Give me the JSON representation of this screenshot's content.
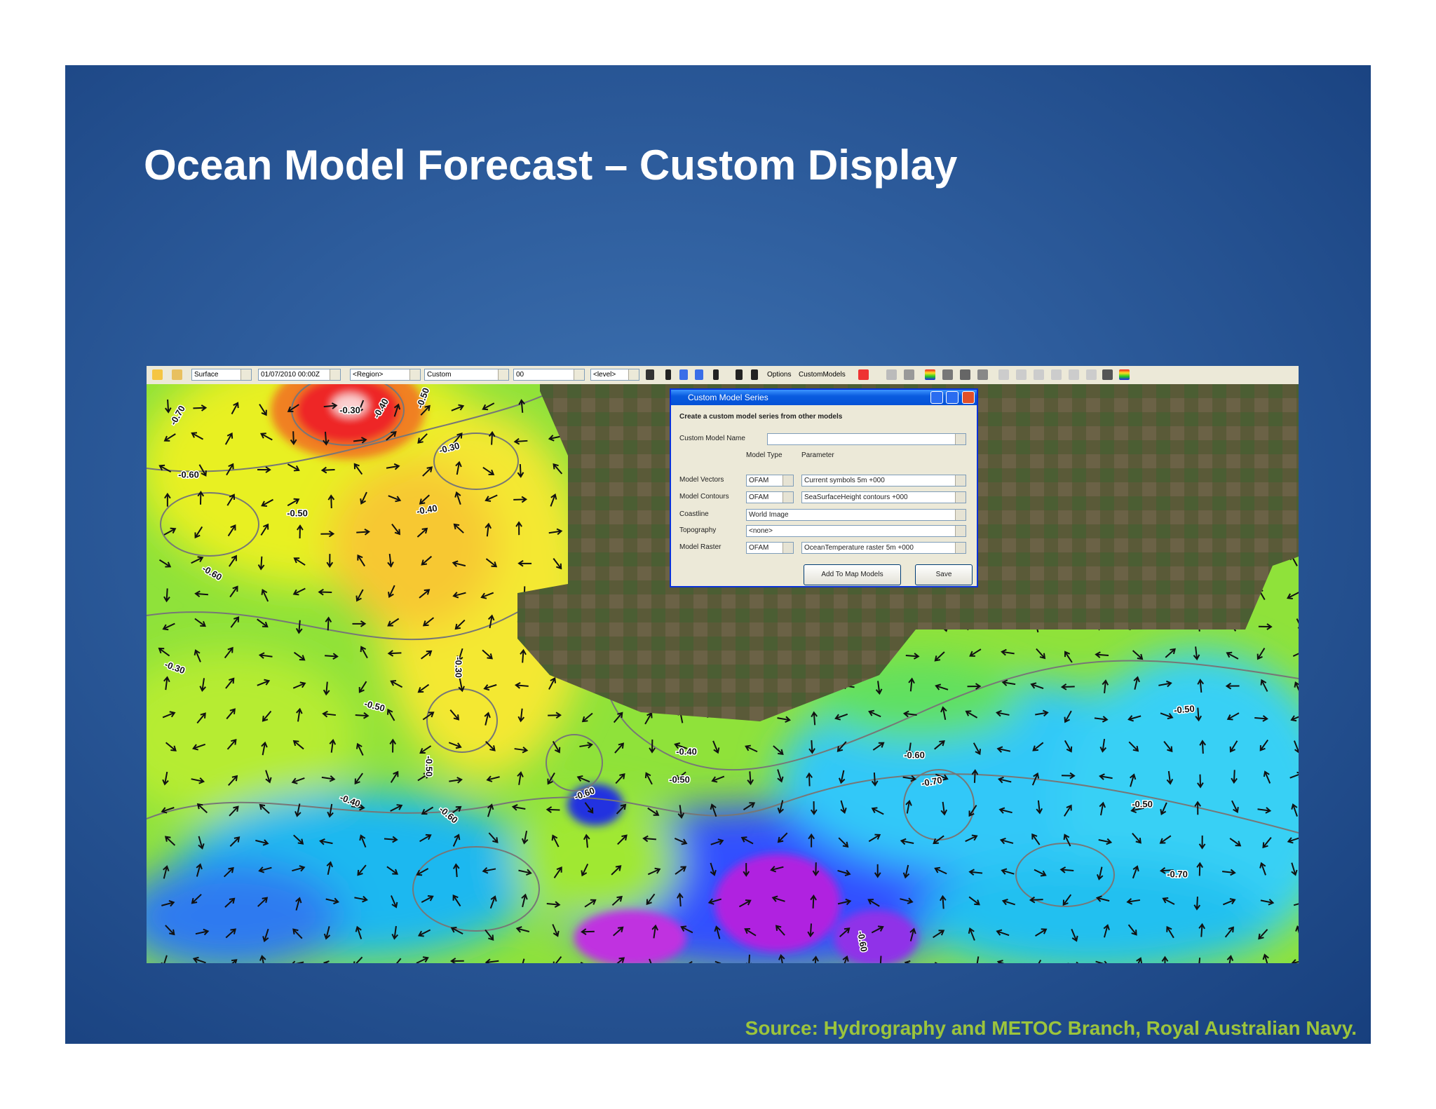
{
  "slide": {
    "title": "Ocean Model Forecast – Custom Display",
    "source": "Source: Hydrography and METOC Branch, Royal Australian Navy."
  },
  "toolbar": {
    "fields": [
      "Surface",
      "01/07/2010 00:00Z",
      "<Region>",
      "Custom",
      "00",
      "<level>"
    ],
    "buttons": [
      "Options",
      "CustomModels"
    ]
  },
  "dialog": {
    "title": "Custom Model Series",
    "heading": "Create a custom model series from other models",
    "name_label": "Custom Model Name",
    "column_headers": [
      "Model Type",
      "Parameter"
    ],
    "rows": [
      {
        "label": "Model Vectors",
        "type": "OFAM",
        "parameter": "Current symbols 5m +000"
      },
      {
        "label": "Model Contours",
        "type": "OFAM",
        "parameter": "SeaSurfaceHeight contours +000"
      },
      {
        "label": "Coastline",
        "parameter": "World Image"
      },
      {
        "label": "Topography",
        "parameter": "<none>"
      },
      {
        "label": "Model Raster",
        "type": "OFAM",
        "parameter": "OceanTemperature raster 5m +000"
      }
    ],
    "buttons": [
      "Add To Map Models",
      "Save"
    ]
  },
  "map": {
    "contour_labels": [
      "-0.30",
      "-0.40",
      "-0.50",
      "-0.70",
      "-0.60",
      "-0.30",
      "-0.40",
      "-0.50",
      "-0.60",
      "-0.30",
      "-0.50",
      "-0.30",
      "-0.40",
      "-0.50",
      "-0.60",
      "-0.60",
      "-0.40",
      "-0.50",
      "-0.60",
      "-0.70",
      "-0.50",
      "-0.50",
      "-0.70",
      "-0.60"
    ]
  }
}
